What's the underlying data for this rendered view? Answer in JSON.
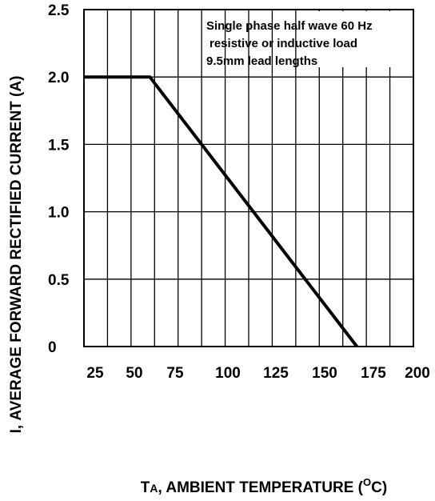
{
  "chart_data": {
    "type": "line",
    "xlabel": {
      "prefix": "T",
      "sub": "A",
      "rest": ", AMBIENT TEMPERATURE (",
      "sup": "O",
      "end": "C)"
    },
    "ylabel": "Ι, AVERAGE FORWARD RECTIFIED CURRENT (A)",
    "x_ticks": [
      "25",
      "50",
      "75",
      "100",
      "125",
      "150",
      "175",
      "200"
    ],
    "y_ticks": [
      "0",
      "0.5",
      "1.0",
      "1.5",
      "2.0",
      "2.5"
    ],
    "xlim": [
      25,
      200
    ],
    "ylim": [
      0,
      2.5
    ],
    "grid": true,
    "annotation": [
      "Single phase half wave 60 Hz",
      "resistive or inductive load",
      "9.5mm lead lengths"
    ],
    "series": [
      {
        "x": [
          25,
          60,
          170
        ],
        "y": [
          2.0,
          2.0,
          0
        ]
      }
    ],
    "colors": {
      "line": "#000000",
      "grid": "#000000",
      "background": "#ffffff"
    }
  }
}
